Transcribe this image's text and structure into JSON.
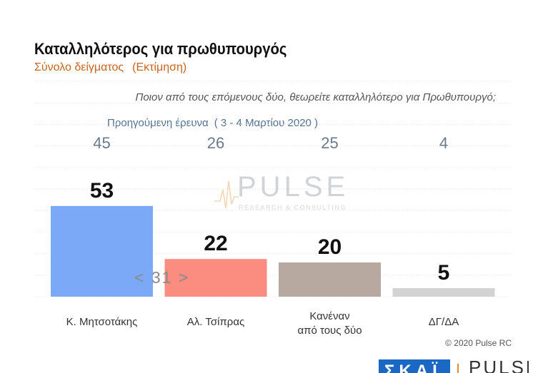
{
  "header": {
    "title": "Καταλληλότερος για πρωθυπουργός",
    "subtitle_left": "Σύνολο δείγματος",
    "subtitle_right": "(Εκτίμηση)",
    "question": "Ποιον από τους επόμενους δύο, θεωρείτε καταλληλότερο για Πρωθυπουργό;",
    "previous_label": "Προηγούμενη έρευνα",
    "previous_dates": "( 3 - 4 Μαρτίου 2020 )"
  },
  "watermark": {
    "text": "PULSE",
    "sub": "RESEARCH & CONSULTING"
  },
  "navigation": {
    "page": "< 31 >"
  },
  "footer": {
    "copyright": "© 2020 Pulse RC",
    "logo_left": "ΣΚΑΪ",
    "logo_right": "PULSE"
  },
  "colors": {
    "title": "#111111",
    "subtitle": "#c8651e",
    "previous": "#52708f",
    "mitsotakis": "#7ba9f7",
    "tsipras": "#fb8c80",
    "neither": "#b8a9a0",
    "dk": "#d3d3d3"
  },
  "chart_data": {
    "type": "bar",
    "categories": [
      "Κ. Μητσοτάκης",
      "Αλ. Τσίπρας",
      "Κανέναν από τους δύο",
      "ΔΓ/ΔΑ"
    ],
    "category_lines": [
      [
        "Κ. Μητσοτάκης"
      ],
      [
        "Αλ. Τσίπρας"
      ],
      [
        "Κανέναν",
        "από τους δύο"
      ],
      [
        "ΔΓ/ΔΑ"
      ]
    ],
    "values": [
      53,
      22,
      20,
      5
    ],
    "previous_values": [
      45,
      26,
      25,
      4
    ],
    "colors": [
      "#7ba9f7",
      "#fb8c80",
      "#b8a9a0",
      "#d3d3d3"
    ],
    "ylim": [
      0,
      60
    ],
    "grid": true
  }
}
